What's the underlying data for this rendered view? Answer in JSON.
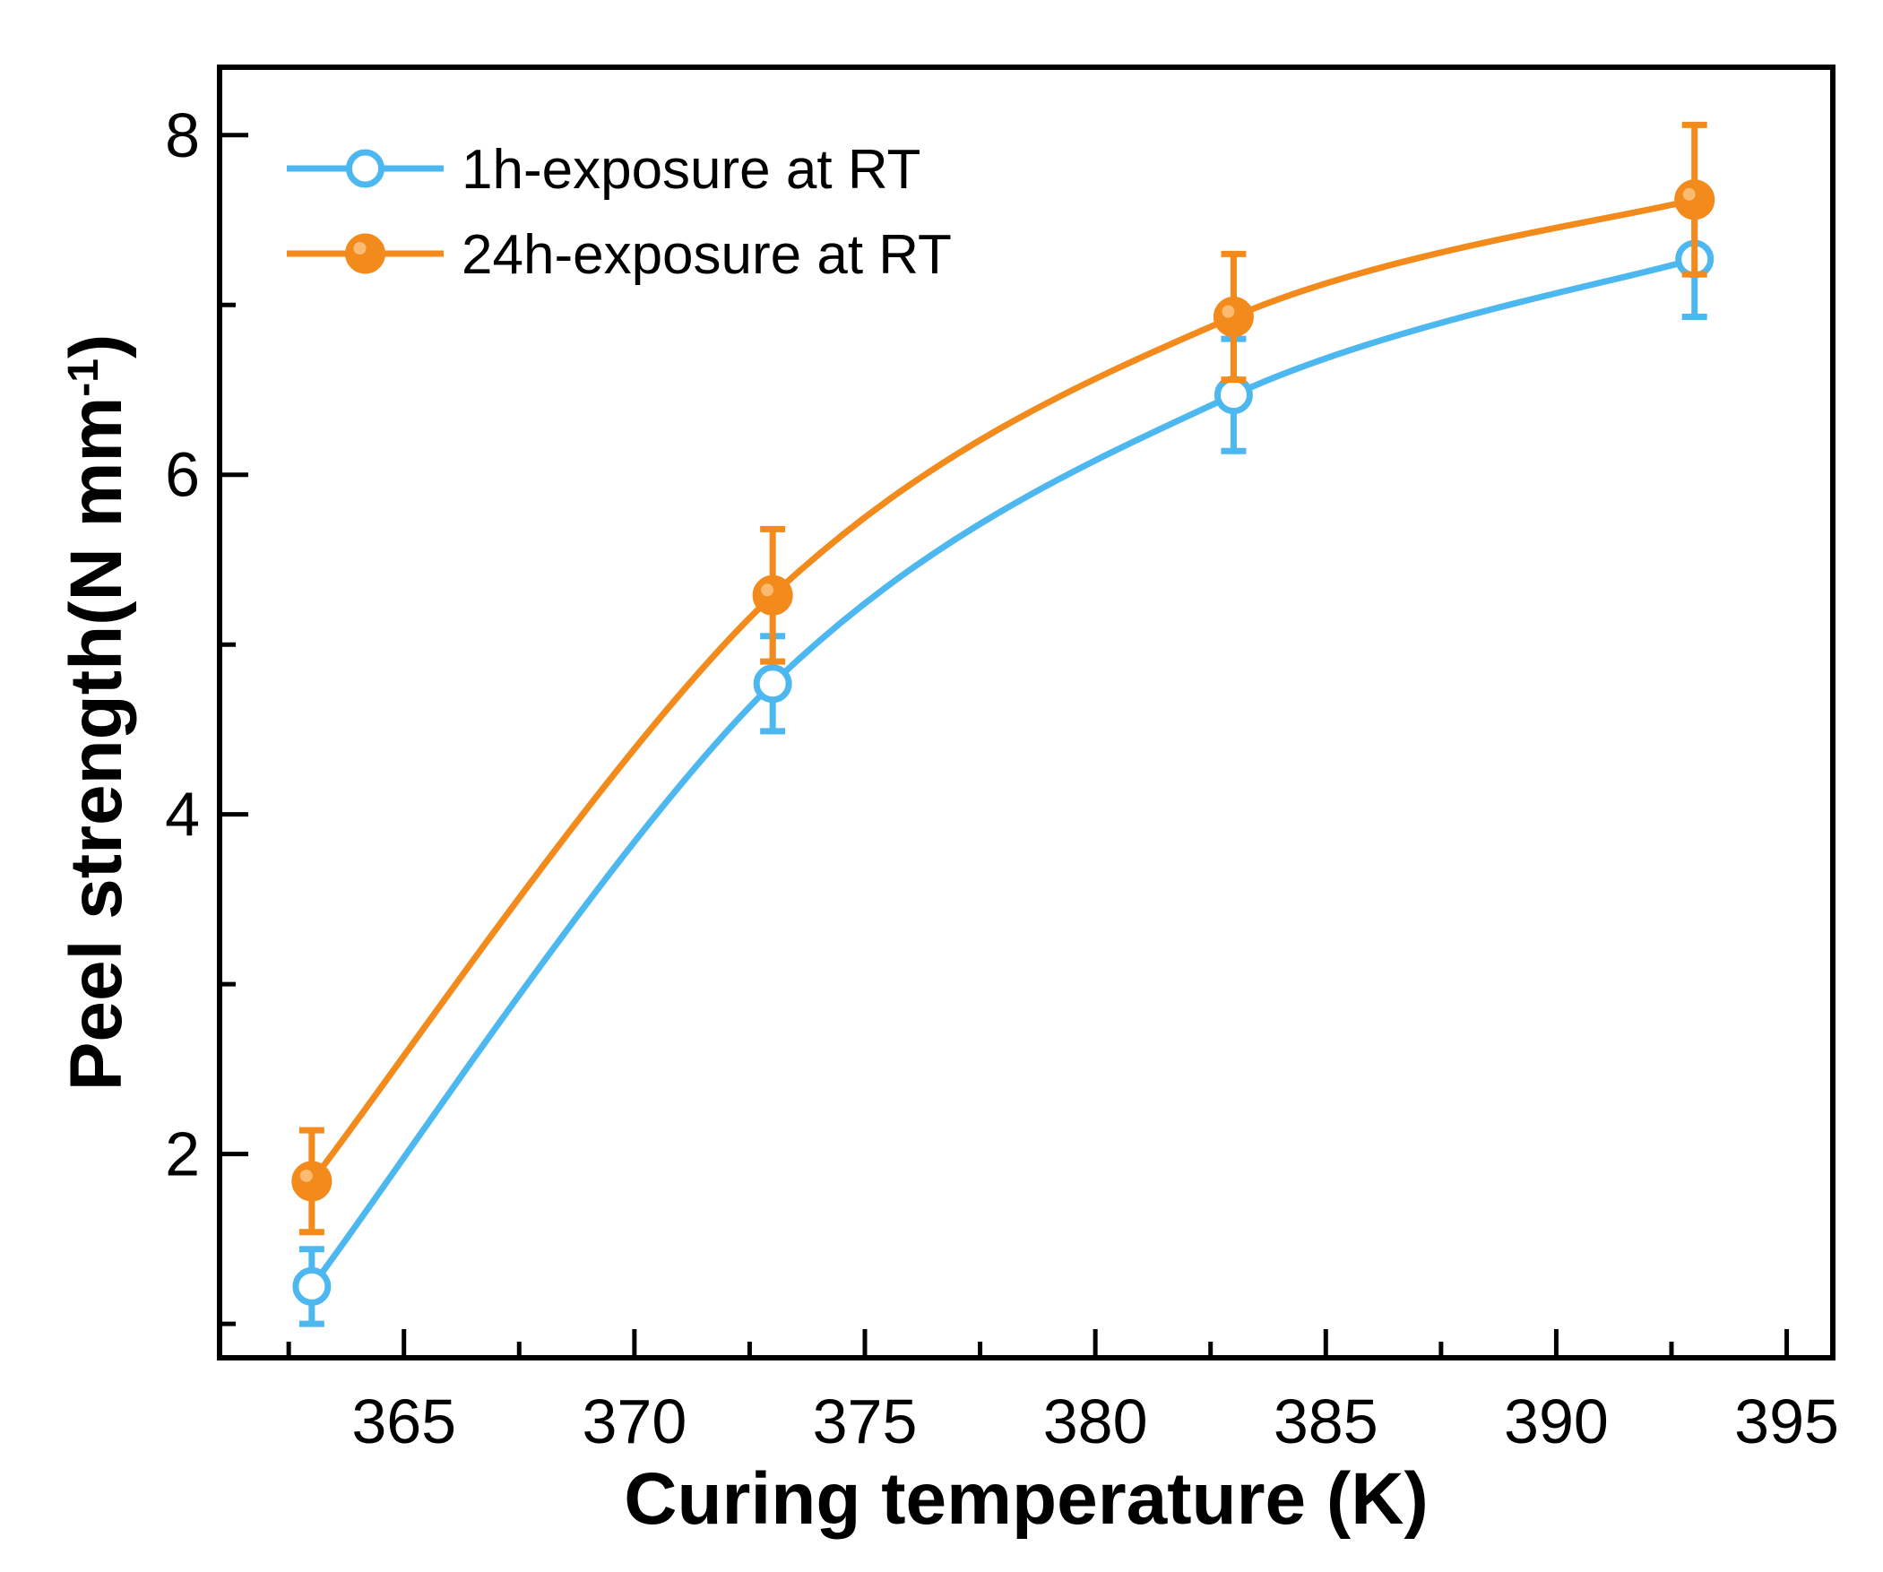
{
  "chart_data": {
    "type": "line",
    "xlabel": "Curing temperature (K)",
    "ylabel_main": "Peel strength(N mm",
    "ylabel_sup": "-1",
    "ylabel_close": ")",
    "xlim": [
      361,
      396
    ],
    "ylim": [
      0.8,
      8.4
    ],
    "x_ticks": [
      365,
      370,
      375,
      380,
      385,
      390,
      395
    ],
    "x_minor_ticks": [
      362.5,
      367.5,
      372.5,
      377.5,
      382.5,
      387.5,
      392.5
    ],
    "y_ticks": [
      2,
      4,
      6,
      8
    ],
    "y_minor_ticks": [
      1,
      3,
      5,
      7
    ],
    "grid": false,
    "legend_position": "top-left",
    "series": [
      {
        "name": "1h-exposure at RT",
        "color": "#4db8f0",
        "marker": "open-circle",
        "x": [
          363,
          373,
          383,
          393
        ],
        "y": [
          1.22,
          4.77,
          6.47,
          7.27
        ],
        "error": [
          0.22,
          0.28,
          0.33,
          0.34
        ]
      },
      {
        "name": "24h-exposure at RT",
        "color": "#f28a1c",
        "marker": "filled-circle",
        "x": [
          363,
          373,
          383,
          393
        ],
        "y": [
          1.84,
          5.29,
          6.93,
          7.62
        ],
        "error": [
          0.3,
          0.39,
          0.37,
          0.44
        ]
      }
    ]
  }
}
